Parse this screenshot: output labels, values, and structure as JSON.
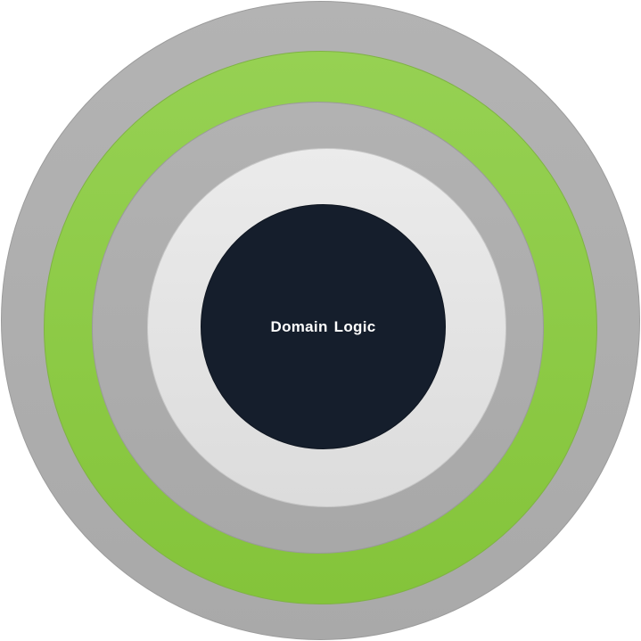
{
  "diagram": {
    "core": {
      "label": "Domain Logic",
      "color": "#151e2c"
    },
    "rings": [
      {
        "name": "outer",
        "color": "#aeaeae"
      },
      {
        "name": "green",
        "color": "#8dcb46"
      },
      {
        "name": "middle",
        "color": "#adadad"
      },
      {
        "name": "inner",
        "color": "#e3e3e3"
      }
    ]
  }
}
